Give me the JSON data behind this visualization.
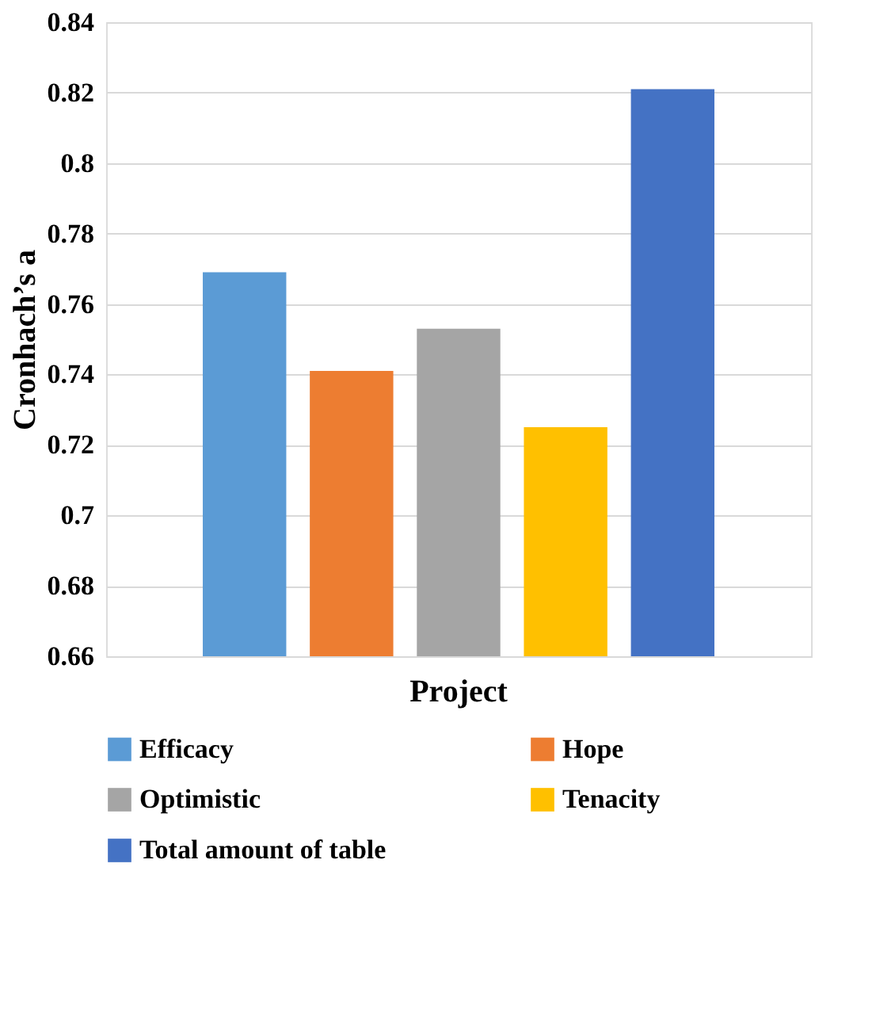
{
  "chart_data": {
    "type": "bar",
    "categories": [
      "Project"
    ],
    "ylabel": "Cronhach’s a",
    "ylim": [
      0.66,
      0.84
    ],
    "yticks": [
      0.66,
      0.68,
      0.7,
      0.72,
      0.74,
      0.76,
      0.78,
      0.8,
      0.82,
      0.84
    ],
    "grid": "y",
    "legend": "bottom",
    "series": [
      {
        "name": "Efficacy",
        "color": "#5b9bd5",
        "values": [
          0.769
        ]
      },
      {
        "name": "Hope",
        "color": "#ed7d31",
        "values": [
          0.741
        ]
      },
      {
        "name": "Optimistic",
        "color": "#a5a5a5",
        "values": [
          0.753
        ]
      },
      {
        "name": "Tenacity",
        "color": "#ffc000",
        "values": [
          0.725
        ]
      },
      {
        "name": "Total amount of table",
        "color": "#4472c4",
        "values": [
          0.821
        ]
      }
    ]
  }
}
